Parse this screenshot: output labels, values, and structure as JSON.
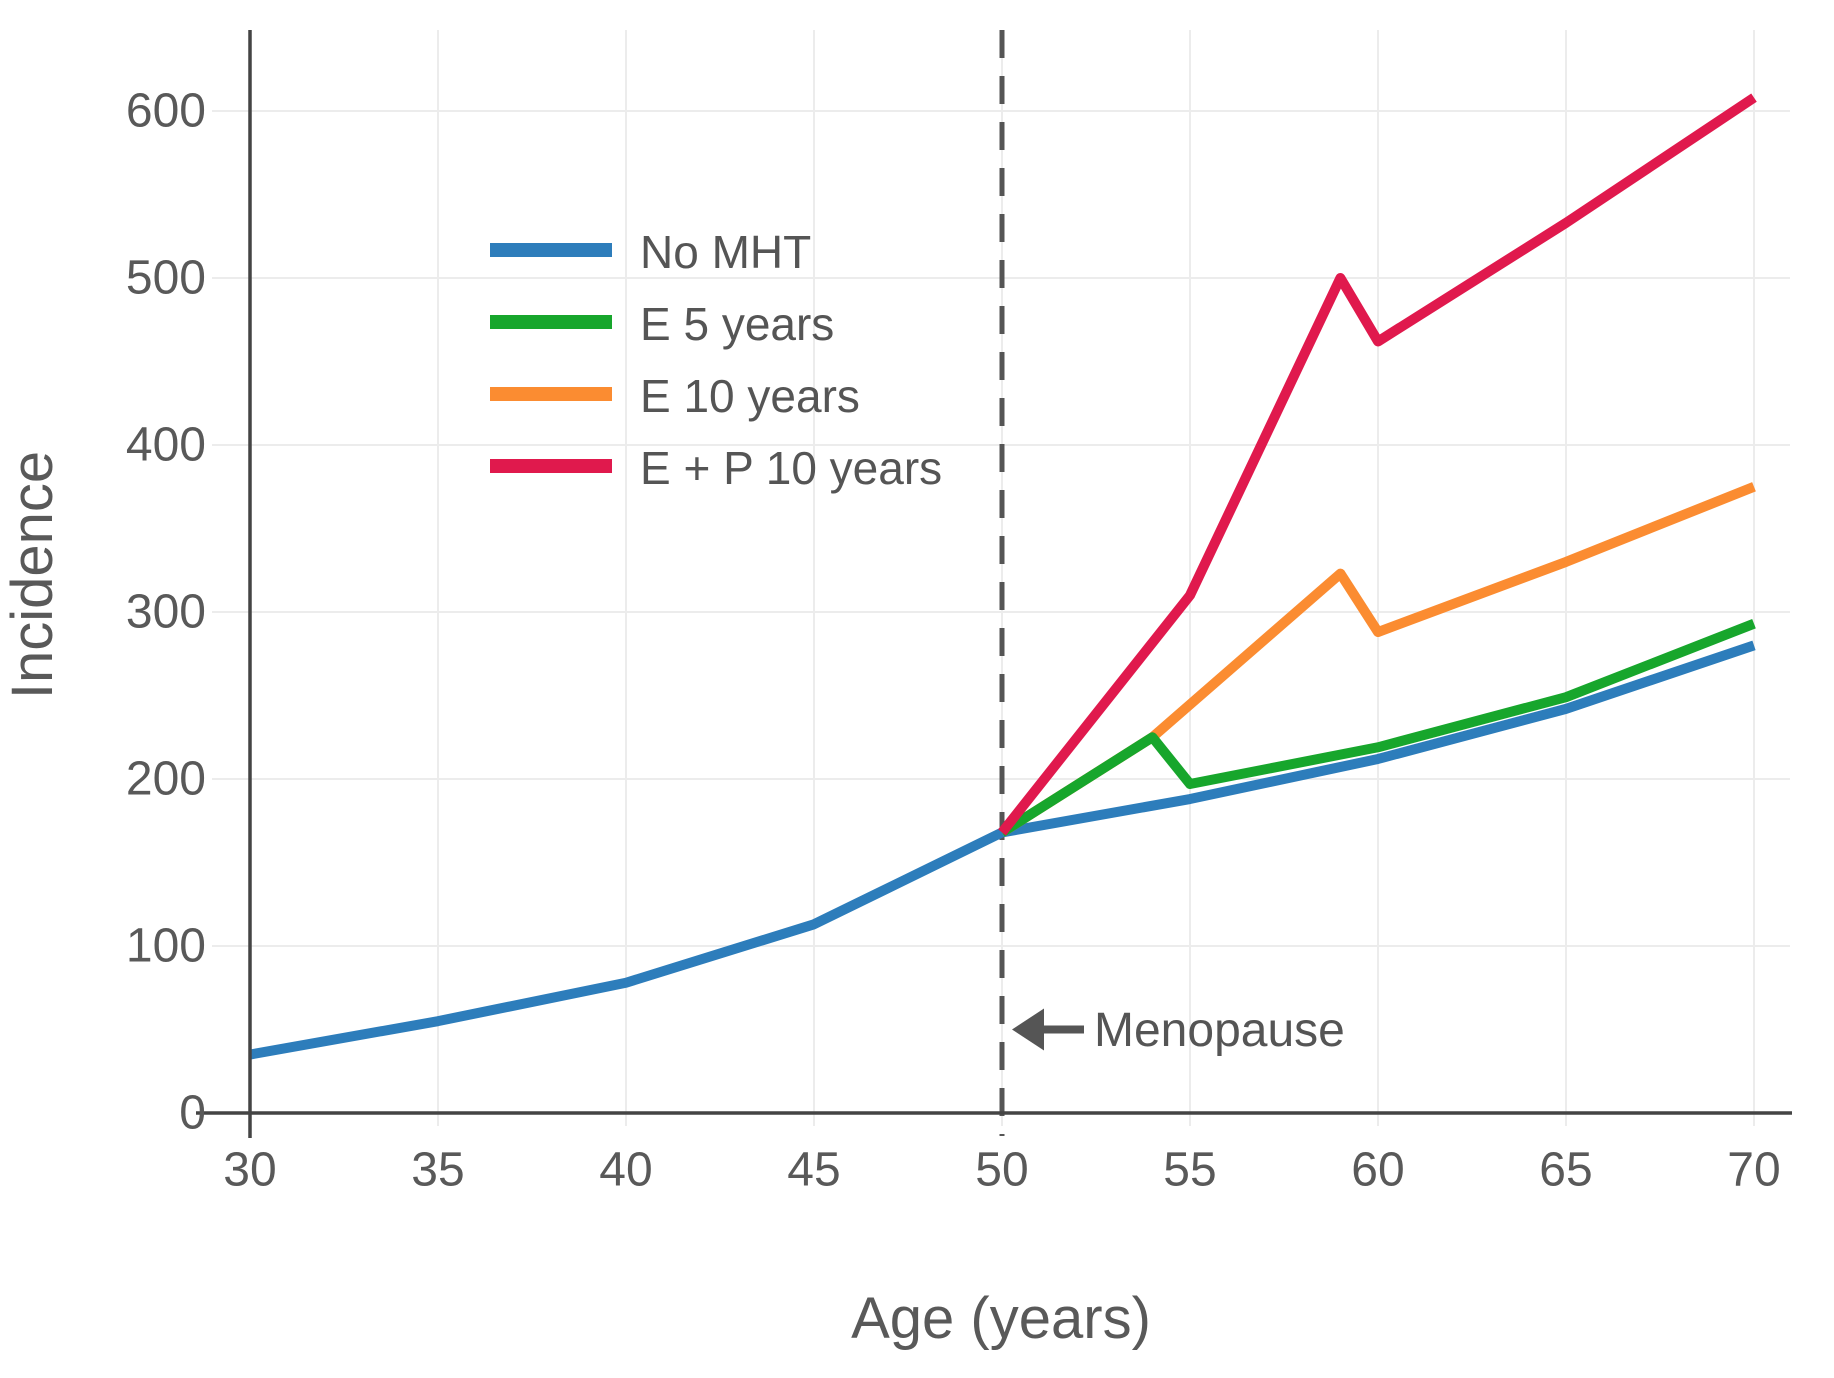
{
  "chart_data": {
    "type": "line",
    "title": "",
    "xlabel": "Age (years)",
    "ylabel": "Incidence",
    "x_ticks": [
      30,
      35,
      40,
      45,
      50,
      55,
      60,
      65,
      70
    ],
    "y_ticks": [
      0,
      100,
      200,
      300,
      400,
      500,
      600
    ],
    "xlim": [
      30,
      70
    ],
    "ylim": [
      0,
      650
    ],
    "grid": true,
    "legend_position": "upper left inside plot",
    "series": [
      {
        "name": "No MHT",
        "color": "#2d7dbb",
        "points": [
          [
            30,
            35
          ],
          [
            35,
            55
          ],
          [
            40,
            78
          ],
          [
            45,
            113
          ],
          [
            50,
            168
          ],
          [
            55,
            188
          ],
          [
            60,
            212
          ],
          [
            65,
            242
          ],
          [
            70,
            280
          ]
        ]
      },
      {
        "name": "E 5 years",
        "color": "#17a62c",
        "points": [
          [
            50,
            168
          ],
          [
            54,
            225
          ],
          [
            55,
            197
          ],
          [
            60,
            219
          ],
          [
            65,
            249
          ],
          [
            70,
            293
          ]
        ]
      },
      {
        "name": "E 10 years",
        "color": "#fb8c31",
        "points": [
          [
            50,
            168
          ],
          [
            54,
            225
          ],
          [
            59,
            323
          ],
          [
            60,
            288
          ],
          [
            65,
            330
          ],
          [
            70,
            375
          ]
        ]
      },
      {
        "name": "E + P 10 years",
        "color": "#e0194d",
        "points": [
          [
            50,
            168
          ],
          [
            55,
            310
          ],
          [
            59,
            500
          ],
          [
            60,
            462
          ],
          [
            65,
            533
          ],
          [
            70,
            608
          ]
        ]
      }
    ],
    "vline": {
      "x": 50,
      "style": "dashed",
      "color": "#555555"
    },
    "annotation": {
      "text": "Menopause",
      "x": 50,
      "y": 50,
      "arrow": "left"
    },
    "style": {
      "axis_color": "#444444",
      "grid_color": "#ececec",
      "tick_text_color": "#595959",
      "background": "#ffffff"
    }
  }
}
